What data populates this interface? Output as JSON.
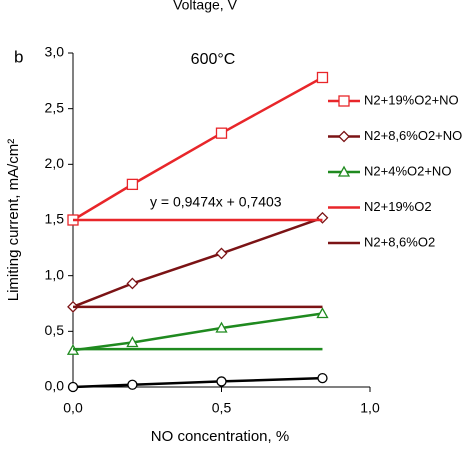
{
  "chart_data": {
    "type": "line",
    "top_caption": "Voltage, V",
    "panel_label": "b",
    "title": "600°C",
    "x_label": "NO concentration, %",
    "y_label": "Limiting current, mA/cm²",
    "annotation": "y = 0,9474x + 0,7403",
    "xlim": [
      0,
      1.0
    ],
    "ylim": [
      0,
      3.0
    ],
    "xticks": [
      {
        "value": 0,
        "label": "0,0"
      },
      {
        "value": 0.5,
        "label": "0,5"
      },
      {
        "value": 1.0,
        "label": "1,0"
      }
    ],
    "yticks": [
      {
        "value": 0,
        "label": "0,0"
      },
      {
        "value": 0.5,
        "label": "0,5"
      },
      {
        "value": 1.0,
        "label": "1,0"
      },
      {
        "value": 1.5,
        "label": "1,5"
      },
      {
        "value": 2.0,
        "label": "2,0"
      },
      {
        "value": 2.5,
        "label": "2,5"
      },
      {
        "value": 3.0,
        "label": "3,0"
      }
    ],
    "grid": false,
    "series": [
      {
        "name": "N2+19%O2+NO",
        "color": "#e8262a",
        "marker": "square",
        "x": [
          0,
          0.2,
          0.5,
          0.84
        ],
        "values": [
          1.5,
          1.82,
          2.28,
          2.78
        ]
      },
      {
        "name": "N2+8,6%O2+NO",
        "color": "#7b1315",
        "marker": "diamond",
        "x": [
          0,
          0.2,
          0.5,
          0.84
        ],
        "values": [
          0.72,
          0.93,
          1.2,
          1.52
        ]
      },
      {
        "name": "N2+4%O2+NO",
        "color": "#1f8a1f",
        "marker": "triangle",
        "x": [
          0,
          0.2,
          0.5,
          0.84
        ],
        "values": [
          0.33,
          0.4,
          0.53,
          0.66
        ]
      },
      {
        "name": "N2+19%O2",
        "color": "#e8262a",
        "marker": "none",
        "x": [
          0,
          0.84
        ],
        "values": [
          1.5,
          1.5
        ]
      },
      {
        "name": "N2+8,6%O2",
        "color": "#7b1315",
        "marker": "none",
        "x": [
          0,
          0.84
        ],
        "values": [
          0.72,
          0.72
        ]
      },
      {
        "color": "#1f8a1f",
        "marker": "none",
        "x": [
          0,
          0.84
        ],
        "values": [
          0.34,
          0.34
        ]
      },
      {
        "color": "#000000",
        "marker": "circle",
        "x": [
          0,
          0.2,
          0.5,
          0.84
        ],
        "values": [
          0,
          0.02,
          0.05,
          0.08
        ]
      }
    ]
  }
}
